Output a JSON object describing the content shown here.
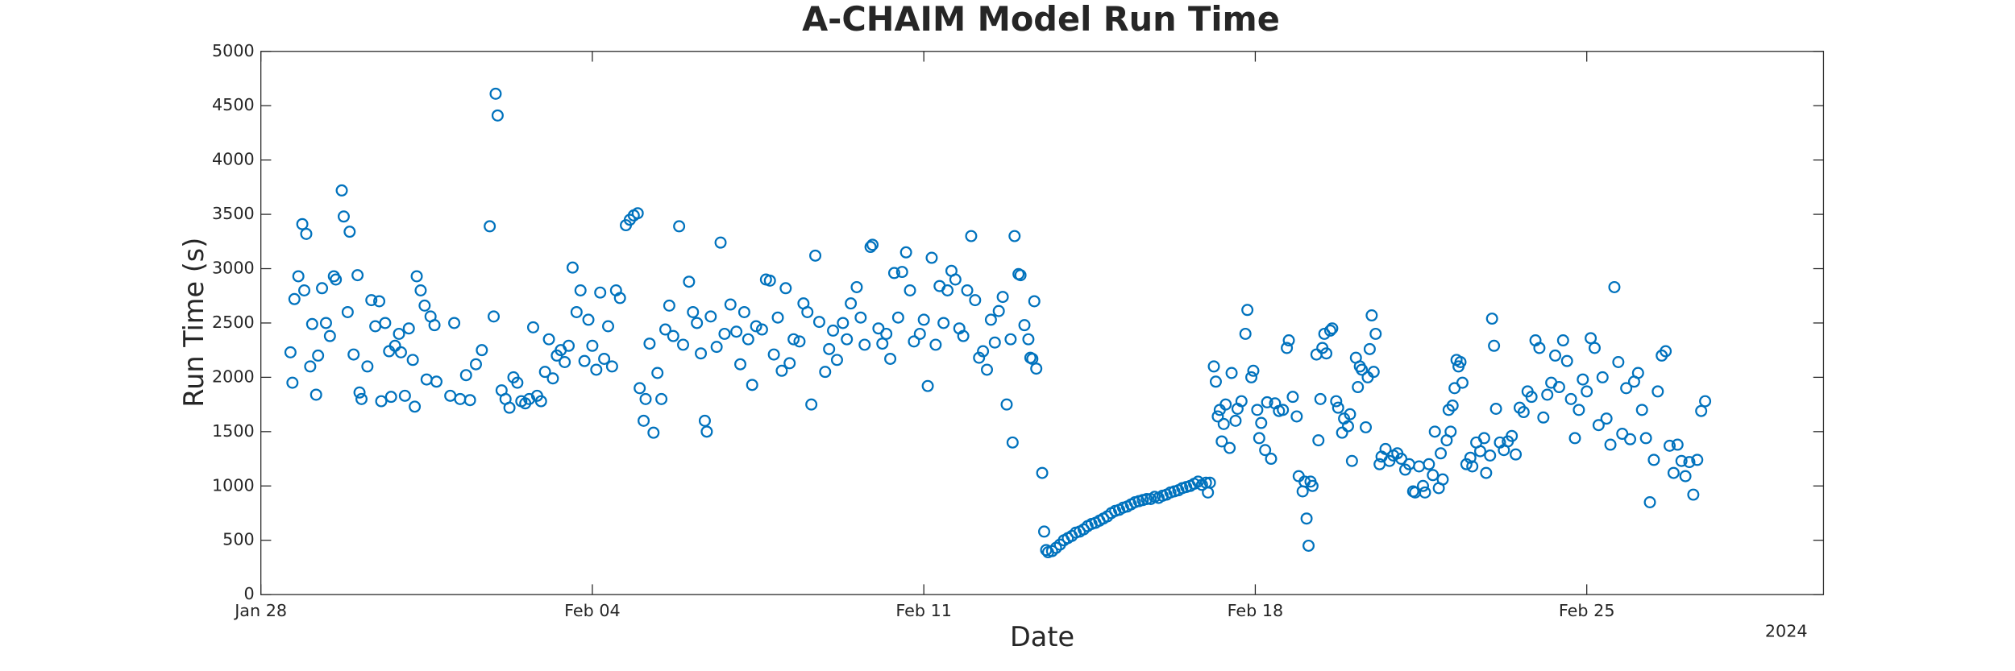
{
  "chart_data": {
    "type": "scatter",
    "title": "A-CHAIM Model Run Time",
    "x_label": "Date",
    "y_label": "Run Time (s)",
    "x_year_label": "2024",
    "color": "#0072bd",
    "xlim": [
      "2024-01-28",
      "2024-03-01"
    ],
    "xticks": [
      {
        "value": "2024-01-28",
        "label": "Jan 28"
      },
      {
        "value": "2024-02-04",
        "label": "Feb 04"
      },
      {
        "value": "2024-02-11",
        "label": "Feb 11"
      },
      {
        "value": "2024-02-18",
        "label": "Feb 18"
      },
      {
        "value": "2024-02-25",
        "label": "Feb 25"
      }
    ],
    "ylim": [
      0,
      5000
    ],
    "yticks": [
      0,
      500,
      1000,
      1500,
      2000,
      2500,
      3000,
      3500,
      4000,
      4500,
      5000
    ],
    "x": [
      "2024-01-28T15:00",
      "2024-01-28T16:00",
      "2024-01-28T17:00",
      "2024-01-28T19:00",
      "2024-01-28T21:00",
      "2024-01-28T22:00",
      "2024-01-28T23:00",
      "2024-01-29T01:00",
      "2024-01-29T02:00",
      "2024-01-29T04:00",
      "2024-01-29T05:00",
      "2024-01-29T07:00",
      "2024-01-29T09:00",
      "2024-01-29T11:00",
      "2024-01-29T13:00",
      "2024-01-29T14:00",
      "2024-01-29T17:00",
      "2024-01-29T18:00",
      "2024-01-29T20:00",
      "2024-01-29T21:00",
      "2024-01-29T23:00",
      "2024-01-30T01:00",
      "2024-01-30T02:00",
      "2024-01-30T03:00",
      "2024-01-30T06:00",
      "2024-01-30T08:00",
      "2024-01-30T10:00",
      "2024-01-30T12:00",
      "2024-01-30T13:00",
      "2024-01-30T15:00",
      "2024-01-30T17:00",
      "2024-01-30T18:00",
      "2024-01-30T20:00",
      "2024-01-30T22:00",
      "2024-01-30T23:00",
      "2024-01-31T01:00",
      "2024-01-31T03:00",
      "2024-01-31T05:00",
      "2024-01-31T06:00",
      "2024-01-31T07:00",
      "2024-01-31T09:00",
      "2024-01-31T11:00",
      "2024-01-31T12:00",
      "2024-01-31T14:00",
      "2024-01-31T16:00",
      "2024-01-31T17:00",
      "2024-02-01T00:00",
      "2024-02-01T02:00",
      "2024-02-01T05:00",
      "2024-02-01T08:00",
      "2024-02-01T10:00",
      "2024-02-01T13:00",
      "2024-02-01T16:00",
      "2024-02-01T20:00",
      "2024-02-01T22:00",
      "2024-02-01T23:00",
      "2024-02-02T00:00",
      "2024-02-02T02:00",
      "2024-02-02T04:00",
      "2024-02-02T06:00",
      "2024-02-02T08:00",
      "2024-02-02T10:00",
      "2024-02-02T12:00",
      "2024-02-02T14:00",
      "2024-02-02T16:00",
      "2024-02-02T18:00",
      "2024-02-02T20:00",
      "2024-02-02T22:00",
      "2024-02-03T00:00",
      "2024-02-03T02:00",
      "2024-02-03T04:00",
      "2024-02-03T06:00",
      "2024-02-03T08:00",
      "2024-02-03T10:00",
      "2024-02-03T12:00",
      "2024-02-03T14:00",
      "2024-02-03T16:00",
      "2024-02-03T18:00",
      "2024-02-03T20:00",
      "2024-02-03T22:00",
      "2024-02-04T00:00",
      "2024-02-04T02:00",
      "2024-02-04T04:00",
      "2024-02-04T06:00",
      "2024-02-04T08:00",
      "2024-02-04T10:00",
      "2024-02-04T12:00",
      "2024-02-04T14:00",
      "2024-02-04T17:00",
      "2024-02-04T19:00",
      "2024-02-04T21:00",
      "2024-02-04T23:00",
      "2024-02-05T00:00",
      "2024-02-05T02:00",
      "2024-02-05T03:00",
      "2024-02-05T05:00",
      "2024-02-05T07:00",
      "2024-02-05T09:00",
      "2024-02-05T11:00",
      "2024-02-05T13:00",
      "2024-02-05T15:00",
      "2024-02-05T17:00",
      "2024-02-05T20:00",
      "2024-02-05T22:00",
      "2024-02-06T01:00",
      "2024-02-06T03:00",
      "2024-02-06T05:00",
      "2024-02-06T07:00",
      "2024-02-06T09:00",
      "2024-02-06T10:00",
      "2024-02-06T12:00",
      "2024-02-06T15:00",
      "2024-02-06T17:00",
      "2024-02-06T19:00",
      "2024-02-06T22:00",
      "2024-02-07T01:00",
      "2024-02-07T03:00",
      "2024-02-07T05:00",
      "2024-02-07T07:00",
      "2024-02-07T09:00",
      "2024-02-07T11:00",
      "2024-02-07T14:00",
      "2024-02-07T16:00",
      "2024-02-07T18:00",
      "2024-02-07T20:00",
      "2024-02-07T22:00",
      "2024-02-08T00:00",
      "2024-02-08T02:00",
      "2024-02-08T04:00",
      "2024-02-08T06:00",
      "2024-02-08T09:00",
      "2024-02-08T11:00",
      "2024-02-08T13:00",
      "2024-02-08T15:00",
      "2024-02-08T17:00",
      "2024-02-08T19:00",
      "2024-02-08T22:00",
      "2024-02-09T00:00",
      "2024-02-09T02:00",
      "2024-02-09T04:00",
      "2024-02-09T07:00",
      "2024-02-09T09:00",
      "2024-02-09T11:00",
      "2024-02-09T14:00",
      "2024-02-09T16:00",
      "2024-02-09T18:00",
      "2024-02-09T21:00",
      "2024-02-09T22:00",
      "2024-02-10T01:00",
      "2024-02-10T03:00",
      "2024-02-10T05:00",
      "2024-02-10T07:00",
      "2024-02-10T09:00",
      "2024-02-10T11:00",
      "2024-02-10T13:00",
      "2024-02-10T15:00",
      "2024-02-10T17:00",
      "2024-02-10T19:00",
      "2024-02-10T22:00",
      "2024-02-11T00:00",
      "2024-02-11T02:00",
      "2024-02-11T04:00",
      "2024-02-11T06:00",
      "2024-02-11T08:00",
      "2024-02-11T10:00",
      "2024-02-11T12:00",
      "2024-02-11T14:00",
      "2024-02-11T16:00",
      "2024-02-11T18:00",
      "2024-02-11T20:00",
      "2024-02-11T22:00",
      "2024-02-12T00:00",
      "2024-02-12T02:00",
      "2024-02-12T04:00",
      "2024-02-12T06:00",
      "2024-02-12T08:00",
      "2024-02-12T10:00",
      "2024-02-12T12:00",
      "2024-02-12T14:00",
      "2024-02-12T16:00",
      "2024-02-12T18:00",
      "2024-02-12T20:00",
      "2024-02-12T21:00",
      "2024-02-12T22:00",
      "2024-02-13T00:00",
      "2024-02-13T01:00",
      "2024-02-13T03:00",
      "2024-02-13T05:00",
      "2024-02-13T06:00",
      "2024-02-13T07:00",
      "2024-02-13T08:00",
      "2024-02-13T09:00",
      "2024-02-13T12:00",
      "2024-02-13T13:00",
      "2024-02-13T14:00",
      "2024-02-13T15:00",
      "2024-02-13T17:00",
      "2024-02-13T19:00",
      "2024-02-13T21:00",
      "2024-02-13T23:00",
      "2024-02-14T01:00",
      "2024-02-14T03:00",
      "2024-02-14T05:00",
      "2024-02-14T07:00",
      "2024-02-14T09:00",
      "2024-02-14T11:00",
      "2024-02-14T13:00",
      "2024-02-14T15:00",
      "2024-02-14T17:00",
      "2024-02-14T19:00",
      "2024-02-14T21:00",
      "2024-02-14T23:00",
      "2024-02-15T01:00",
      "2024-02-15T03:00",
      "2024-02-15T05:00",
      "2024-02-15T07:00",
      "2024-02-15T09:00",
      "2024-02-15T11:00",
      "2024-02-15T13:00",
      "2024-02-15T15:00",
      "2024-02-15T17:00",
      "2024-02-15T19:00",
      "2024-02-15T21:00",
      "2024-02-15T23:00",
      "2024-02-16T01:00",
      "2024-02-16T03:00",
      "2024-02-16T05:00",
      "2024-02-16T07:00",
      "2024-02-16T09:00",
      "2024-02-16T11:00",
      "2024-02-16T13:00",
      "2024-02-16T15:00",
      "2024-02-16T17:00",
      "2024-02-16T19:00",
      "2024-02-16T21:00",
      "2024-02-16T23:00",
      "2024-02-17T00:00",
      "2024-02-17T01:00",
      "2024-02-17T03:00",
      "2024-02-17T04:00",
      "2024-02-17T05:00",
      "2024-02-17T06:00",
      "2024-02-17T07:00",
      "2024-02-17T08:00",
      "2024-02-17T09:00",
      "2024-02-17T11:00",
      "2024-02-17T12:00",
      "2024-02-17T14:00",
      "2024-02-17T15:00",
      "2024-02-17T17:00",
      "2024-02-17T19:00",
      "2024-02-17T20:00",
      "2024-02-17T22:00",
      "2024-02-17T23:00",
      "2024-02-18T01:00",
      "2024-02-18T02:00",
      "2024-02-18T03:00",
      "2024-02-18T05:00",
      "2024-02-18T06:00",
      "2024-02-18T08:00",
      "2024-02-18T10:00",
      "2024-02-18T12:00",
      "2024-02-18T14:00",
      "2024-02-18T16:00",
      "2024-02-18T17:00",
      "2024-02-18T19:00",
      "2024-02-18T21:00",
      "2024-02-18T22:00",
      "2024-02-19T00:00",
      "2024-02-19T01:00",
      "2024-02-19T02:00",
      "2024-02-19T03:00",
      "2024-02-19T04:00",
      "2024-02-19T05:00",
      "2024-02-19T07:00",
      "2024-02-19T08:00",
      "2024-02-19T09:00",
      "2024-02-19T10:00",
      "2024-02-19T11:00",
      "2024-02-19T12:00",
      "2024-02-19T14:00",
      "2024-02-19T15:00",
      "2024-02-19T17:00",
      "2024-02-19T18:00",
      "2024-02-19T20:00",
      "2024-02-19T21:00",
      "2024-02-19T23:00",
      "2024-02-20T00:00",
      "2024-02-20T01:00",
      "2024-02-20T03:00",
      "2024-02-20T04:00",
      "2024-02-20T05:00",
      "2024-02-20T06:00",
      "2024-02-20T08:00",
      "2024-02-20T09:00",
      "2024-02-20T10:00",
      "2024-02-20T11:00",
      "2024-02-20T12:00",
      "2024-02-20T13:00",
      "2024-02-20T15:00",
      "2024-02-20T16:00",
      "2024-02-20T18:00",
      "2024-02-20T20:00",
      "2024-02-20T22:00",
      "2024-02-21T00:00",
      "2024-02-21T02:00",
      "2024-02-21T04:00",
      "2024-02-21T06:00",
      "2024-02-21T08:00",
      "2024-02-21T09:00",
      "2024-02-21T11:00",
      "2024-02-21T13:00",
      "2024-02-21T14:00",
      "2024-02-21T16:00",
      "2024-02-21T18:00",
      "2024-02-21T19:00",
      "2024-02-21T21:00",
      "2024-02-21T22:00",
      "2024-02-21T23:00",
      "2024-02-22T01:00",
      "2024-02-22T02:00",
      "2024-02-22T03:00",
      "2024-02-22T04:00",
      "2024-02-22T05:00",
      "2024-02-22T06:00",
      "2024-02-22T07:00",
      "2024-02-22T08:00",
      "2024-02-22T09:00",
      "2024-02-22T11:00",
      "2024-02-22T13:00",
      "2024-02-22T14:00",
      "2024-02-22T16:00",
      "2024-02-22T18:00",
      "2024-02-22T20:00",
      "2024-02-22T21:00",
      "2024-02-22T23:00",
      "2024-02-23T00:00",
      "2024-02-23T01:00",
      "2024-02-23T02:00",
      "2024-02-23T04:00",
      "2024-02-23T06:00",
      "2024-02-23T08:00",
      "2024-02-23T10:00",
      "2024-02-23T12:00",
      "2024-02-23T14:00",
      "2024-02-23T16:00",
      "2024-02-23T18:00",
      "2024-02-23T20:00",
      "2024-02-23T22:00",
      "2024-02-24T00:00",
      "2024-02-24T02:00",
      "2024-02-24T04:00",
      "2024-02-24T06:00",
      "2024-02-24T08:00",
      "2024-02-24T10:00",
      "2024-02-24T12:00",
      "2024-02-24T14:00",
      "2024-02-24T16:00",
      "2024-02-24T18:00",
      "2024-02-24T20:00",
      "2024-02-24T22:00",
      "2024-02-25T00:00",
      "2024-02-25T02:00",
      "2024-02-25T04:00",
      "2024-02-25T06:00",
      "2024-02-25T08:00",
      "2024-02-25T10:00",
      "2024-02-25T12:00",
      "2024-02-25T14:00",
      "2024-02-25T16:00",
      "2024-02-25T18:00",
      "2024-02-25T20:00",
      "2024-02-25T22:00",
      "2024-02-26T00:00",
      "2024-02-26T02:00",
      "2024-02-26T04:00",
      "2024-02-26T06:00",
      "2024-02-26T08:00",
      "2024-02-26T10:00",
      "2024-02-26T12:00",
      "2024-02-26T14:00",
      "2024-02-26T16:00",
      "2024-02-26T18:00",
      "2024-02-26T20:00",
      "2024-02-26T22:00",
      "2024-02-27T00:00",
      "2024-02-27T02:00",
      "2024-02-27T04:00",
      "2024-02-27T06:00",
      "2024-02-27T08:00",
      "2024-02-27T10:00",
      "2024-02-27T12:00"
    ],
    "values": [
      2230,
      1950,
      2720,
      2930,
      3410,
      2800,
      3320,
      2100,
      2490,
      1840,
      2200,
      2820,
      2500,
      2380,
      2930,
      2900,
      3720,
      3480,
      2600,
      3340,
      2210,
      2940,
      1860,
      1800,
      2100,
      2710,
      2470,
      2700,
      1780,
      2500,
      2240,
      1820,
      2290,
      2400,
      2230,
      1830,
      2450,
      2160,
      1730,
      2930,
      2800,
      2660,
      1980,
      2560,
      2480,
      1960,
      1830,
      2500,
      1800,
      2020,
      1790,
      2120,
      2250,
      3390,
      2560,
      4610,
      4410,
      1880,
      1800,
      1720,
      2000,
      1950,
      1780,
      1760,
      1800,
      2460,
      1830,
      1780,
      2050,
      2350,
      1990,
      2200,
      2250,
      2140,
      2290,
      3010,
      2600,
      2800,
      2150,
      2530,
      2290,
      2070,
      2780,
      2170,
      2470,
      2100,
      2800,
      2730,
      3400,
      3450,
      3490,
      3510,
      1900,
      1600,
      1800,
      2310,
      1490,
      2040,
      1800,
      2440,
      2660,
      2380,
      3390,
      2300,
      2880,
      2600,
      2500,
      2220,
      1600,
      1500,
      2560,
      2280,
      3240,
      2400,
      2670,
      2420,
      2120,
      2600,
      2350,
      1930,
      2470,
      2440,
      2900,
      2890,
      2210,
      2550,
      2060,
      2820,
      2130,
      2350,
      2330,
      2680,
      2600,
      1750,
      3120,
      2510,
      2050,
      2260,
      2430,
      2160,
      2500,
      2350,
      2680,
      2830,
      2550,
      2300,
      3200,
      3220,
      2450,
      2310,
      2400,
      2170,
      2960,
      2550,
      2970,
      3150,
      2800,
      2330,
      2400,
      2530,
      1920,
      3100,
      2300,
      2840,
      2500,
      2800,
      2980,
      2900,
      2450,
      2380,
      2800,
      3300,
      2710,
      2180,
      2240,
      2070,
      2530,
      2320,
      2610,
      2740,
      1750,
      2350,
      1400,
      3300,
      2950,
      2940,
      2480,
      2350,
      2180,
      2170,
      2700,
      2080,
      1120,
      580,
      410,
      390,
      400,
      430,
      460,
      500,
      520,
      540,
      570,
      580,
      600,
      630,
      650,
      660,
      680,
      700,
      720,
      750,
      770,
      780,
      800,
      810,
      830,
      850,
      860,
      870,
      880,
      880,
      900,
      890,
      910,
      920,
      940,
      950,
      960,
      980,
      990,
      1000,
      1020,
      1040,
      1010,
      1030,
      940,
      1030,
      2100,
      1960,
      1640,
      1700,
      1410,
      1570,
      1750,
      1350,
      2040,
      1600,
      1710,
      1780,
      2400,
      2620,
      2000,
      2060,
      1700,
      1440,
      1580,
      1330,
      1770,
      1250,
      1760,
      1690,
      1700,
      2270,
      2340,
      1820,
      1640,
      1090,
      950,
      1040,
      700,
      450,
      1040,
      1000,
      2210,
      1420,
      1800,
      2270,
      2400,
      2220,
      2430,
      2450,
      1780,
      1720,
      1490,
      1620,
      1550,
      1660,
      1230,
      2180,
      1910,
      2100,
      2070,
      1540,
      2000,
      2260,
      2570,
      2050,
      2400,
      1200,
      1270,
      1340,
      1230,
      1280,
      1300,
      1250,
      1150,
      1200,
      950,
      940,
      1180,
      1000,
      940,
      1200,
      1100,
      1500,
      980,
      1300,
      1060,
      1420,
      1700,
      1500,
      1740,
      1900,
      2160,
      2100,
      2140,
      1950,
      1200,
      1260,
      1180,
      1400,
      1320,
      1440,
      1120,
      1280,
      2540,
      2290,
      1710,
      1400,
      1330,
      1410,
      1460,
      1290,
      1720,
      1680,
      1870,
      1820,
      2340,
      2270,
      1630,
      1840,
      1950,
      2200,
      1910,
      2340,
      2150,
      1800,
      1440,
      1700,
      1980,
      1870,
      2360,
      2270,
      1560,
      2000,
      1620,
      1380,
      2830,
      2140,
      1480,
      1900,
      1430,
      1960,
      2040,
      1700,
      1440,
      850,
      1240,
      1870,
      2200,
      2240,
      1370,
      1120,
      1380,
      1230,
      1090,
      1220,
      920,
      1240,
      1690,
      1780
    ]
  }
}
